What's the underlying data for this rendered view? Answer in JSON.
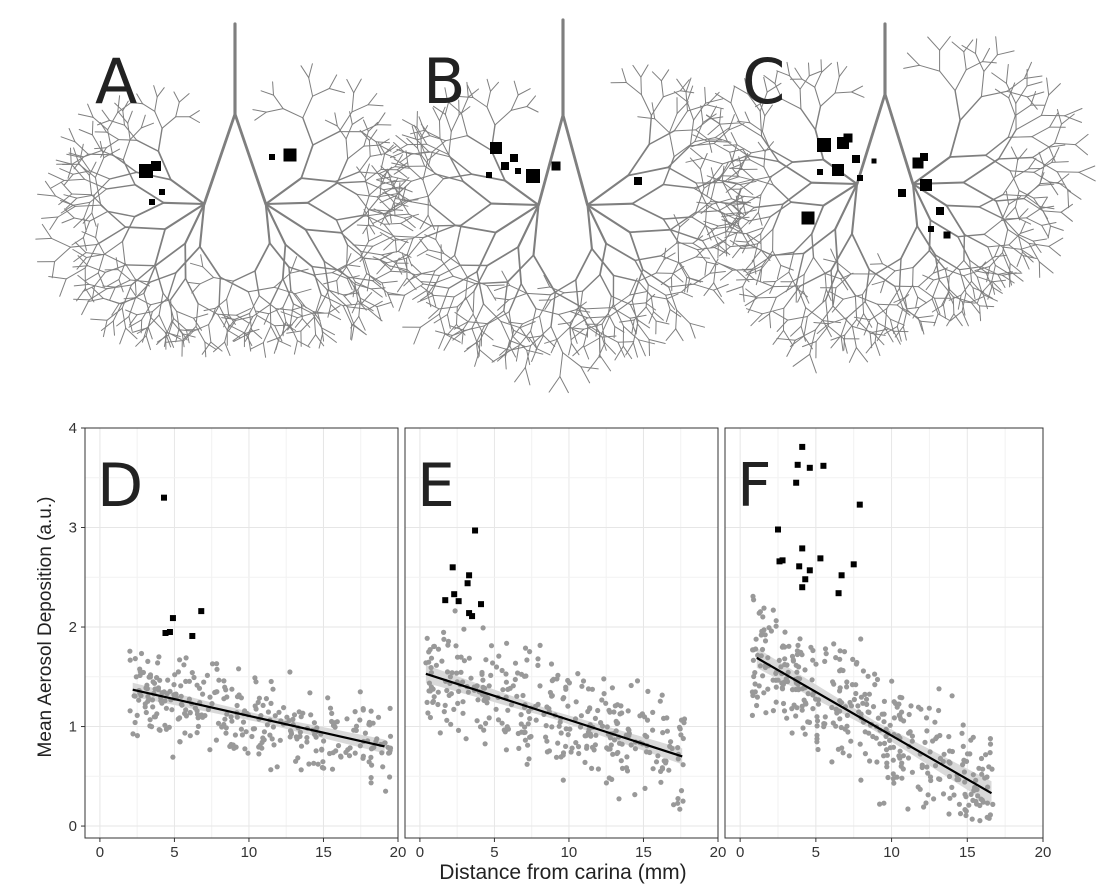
{
  "figure": {
    "xlabel": "Distance from carina (mm)",
    "ylabel": "Mean Aerosol Deposition (a.u.)"
  },
  "trees": [
    {
      "letter": "A"
    },
    {
      "letter": "B"
    },
    {
      "letter": "C"
    }
  ],
  "chart_data": [
    {
      "type": "scatter",
      "panel": "D",
      "xlim": [
        -1,
        20
      ],
      "ylim": [
        -0.12,
        4
      ],
      "xticks": [
        "0",
        "5",
        "10",
        "15",
        "20"
      ],
      "yticks": [
        "0",
        "1",
        "2",
        "3",
        "4"
      ],
      "grid": true,
      "colors": {
        "background_points": "#999999",
        "highlight_points": "#000000",
        "fit": "#000000",
        "ci": "#d9d9d9"
      },
      "highlight_points": [
        [
          4.3,
          3.3
        ],
        [
          4.4,
          1.94
        ],
        [
          4.7,
          1.95
        ],
        [
          4.9,
          2.09
        ],
        [
          6.2,
          1.91
        ],
        [
          6.8,
          2.16
        ]
      ],
      "fit": {
        "x": [
          2.2,
          19.1
        ],
        "y": [
          1.37,
          0.8
        ],
        "ci_halfwidth": [
          0.07,
          0.04,
          0.07
        ]
      },
      "background_point_count": 320,
      "background_point_x_range": [
        2,
        19.5
      ],
      "background_point_noise": 0.22
    },
    {
      "type": "scatter",
      "panel": "E",
      "xlim": [
        -1,
        20
      ],
      "ylim": [
        -0.12,
        4
      ],
      "xticks": [
        "0",
        "5",
        "10",
        "15",
        "20"
      ],
      "yticks": [
        "0",
        "1",
        "2",
        "3",
        "4"
      ],
      "grid": true,
      "colors": {
        "background_points": "#999999",
        "highlight_points": "#000000",
        "fit": "#000000",
        "ci": "#d9d9d9"
      },
      "highlight_points": [
        [
          1.7,
          2.27
        ],
        [
          2.2,
          2.6
        ],
        [
          2.3,
          2.33
        ],
        [
          2.6,
          2.26
        ],
        [
          3.2,
          2.44
        ],
        [
          3.3,
          2.52
        ],
        [
          3.3,
          2.14
        ],
        [
          3.5,
          2.11
        ],
        [
          3.7,
          2.97
        ],
        [
          4.1,
          2.23
        ]
      ],
      "fit": {
        "x": [
          0.4,
          17.6
        ],
        "y": [
          1.53,
          0.7
        ],
        "ci_halfwidth": [
          0.09,
          0.04,
          0.08
        ]
      },
      "background_point_count": 340,
      "background_point_x_range": [
        0.4,
        17.8
      ],
      "background_point_noise": 0.26
    },
    {
      "type": "scatter",
      "panel": "F",
      "xlim": [
        -1,
        20
      ],
      "ylim": [
        -0.12,
        4
      ],
      "xticks": [
        "0",
        "5",
        "10",
        "15",
        "20"
      ],
      "yticks": [
        "0",
        "1",
        "2",
        "3",
        "4"
      ],
      "grid": true,
      "colors": {
        "background_points": "#999999",
        "highlight_points": "#000000",
        "fit": "#000000",
        "ci": "#d9d9d9"
      },
      "highlight_points": [
        [
          2.5,
          2.98
        ],
        [
          2.6,
          2.66
        ],
        [
          2.8,
          2.67
        ],
        [
          3.7,
          3.45
        ],
        [
          3.8,
          3.63
        ],
        [
          3.9,
          2.61
        ],
        [
          4.1,
          3.81
        ],
        [
          4.1,
          2.79
        ],
        [
          4.1,
          2.4
        ],
        [
          4.3,
          2.48
        ],
        [
          4.6,
          3.6
        ],
        [
          4.6,
          2.57
        ],
        [
          5.3,
          2.69
        ],
        [
          5.5,
          3.62
        ],
        [
          6.5,
          2.34
        ],
        [
          6.7,
          2.52
        ],
        [
          7.5,
          2.63
        ],
        [
          7.9,
          3.23
        ]
      ],
      "fit": {
        "x": [
          1.1,
          16.6
        ],
        "y": [
          1.69,
          0.33
        ],
        "ci_halfwidth": [
          0.1,
          0.05,
          0.12
        ]
      },
      "background_point_count": 380,
      "background_point_x_range": [
        0.8,
        16.8
      ],
      "background_point_noise": 0.3
    }
  ]
}
